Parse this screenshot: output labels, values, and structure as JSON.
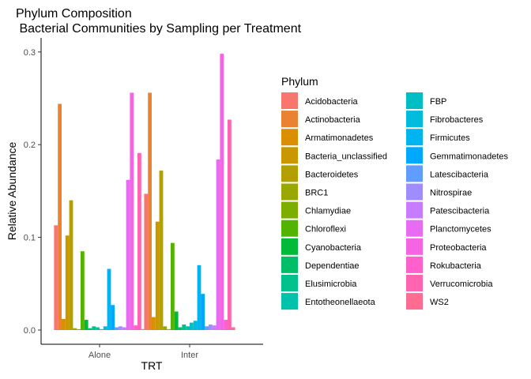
{
  "chart_data": {
    "type": "bar",
    "title": "Phylum Composition",
    "subtitle": " Bacterial Communities by Sampling per Treatment",
    "xlabel": "TRT",
    "ylabel": "Relative Abundance",
    "ylim": [
      0,
      0.31
    ],
    "yticks": [
      0.0,
      0.1,
      0.2,
      0.3
    ],
    "ytick_labels": [
      "0.0",
      "0.1",
      "0.2",
      "0.3"
    ],
    "categories": [
      "Alone",
      "Inter"
    ],
    "legend_title": "Phylum",
    "legend_position": "right",
    "grid": false,
    "series": [
      {
        "name": "Acidobacteria",
        "color": "#F8766D",
        "values": [
          0.113,
          0.147
        ]
      },
      {
        "name": "Actinobacteria",
        "color": "#EA8331",
        "values": [
          0.244,
          0.256
        ]
      },
      {
        "name": "Armatimonadetes",
        "color": "#DB8E00",
        "values": [
          0.012,
          0.014
        ]
      },
      {
        "name": "Bacteria_unclassified",
        "color": "#C99800",
        "values": [
          0.102,
          0.117
        ]
      },
      {
        "name": "Bacteroidetes",
        "color": "#B3A000",
        "values": [
          0.14,
          0.172
        ]
      },
      {
        "name": "BRC1",
        "color": "#99A800",
        "values": [
          0.002,
          0.004
        ]
      },
      {
        "name": "Chlamydiae",
        "color": "#7CAE00",
        "values": [
          0.001,
          0.001
        ]
      },
      {
        "name": "Chloroflexi",
        "color": "#53B400",
        "values": [
          0.085,
          0.094
        ]
      },
      {
        "name": "Cyanobacteria",
        "color": "#00BA38",
        "values": [
          0.011,
          0.02
        ]
      },
      {
        "name": "Dependentiae",
        "color": "#00BE67",
        "values": [
          0.002,
          0.003
        ]
      },
      {
        "name": "Elusimicrobia",
        "color": "#00C08B",
        "values": [
          0.004,
          0.006
        ]
      },
      {
        "name": "Entotheonellaeota",
        "color": "#00C1A9",
        "values": [
          0.003,
          0.004
        ]
      },
      {
        "name": "FBP",
        "color": "#00BFC4",
        "values": [
          0.001,
          0.008
        ]
      },
      {
        "name": "Fibrobacteres",
        "color": "#00BBDC",
        "values": [
          0.004,
          0.01
        ]
      },
      {
        "name": "Firmicutes",
        "color": "#00B4F0",
        "values": [
          0.066,
          0.07
        ]
      },
      {
        "name": "Gemmatimonadetes",
        "color": "#00A9FF",
        "values": [
          0.027,
          0.039
        ]
      },
      {
        "name": "Latescibacteria",
        "color": "#619CFF",
        "values": [
          0.003,
          0.004
        ]
      },
      {
        "name": "Nitrospirae",
        "color": "#9F8CFF",
        "values": [
          0.004,
          0.006
        ]
      },
      {
        "name": "Patescibacteria",
        "color": "#C77CFF",
        "values": [
          0.003,
          0.005
        ]
      },
      {
        "name": "Planctomycetes",
        "color": "#E76BF3",
        "values": [
          0.162,
          0.184
        ]
      },
      {
        "name": "Proteobacteria",
        "color": "#F564E3",
        "values": [
          0.256,
          0.298
        ]
      },
      {
        "name": "Rokubacteria",
        "color": "#FF61CC",
        "values": [
          0.005,
          0.011
        ]
      },
      {
        "name": "Verrucomicrobia",
        "color": "#FF64B0",
        "values": [
          0.191,
          0.227
        ]
      },
      {
        "name": "WS2",
        "color": "#FF6C91",
        "values": [
          0.001,
          0.003
        ]
      }
    ]
  }
}
